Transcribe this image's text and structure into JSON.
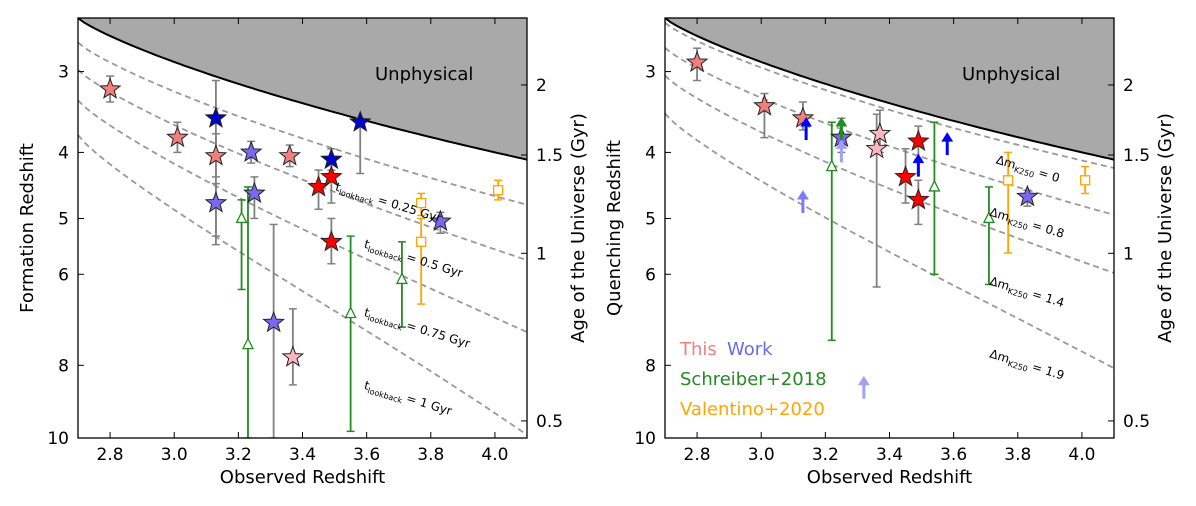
{
  "chart_data": [
    {
      "type": "scatter",
      "title": "",
      "xlabel": "Observed Redshift",
      "ylabel": "Formation Redshift",
      "y2label": "Age of the Universe (Gyr)",
      "xlim": [
        2.7,
        4.1
      ],
      "ylim": [
        10,
        2.45
      ],
      "x_ticks": [
        2.8,
        3.0,
        3.2,
        3.4,
        3.6,
        3.8,
        4.0
      ],
      "x_tick_labels": [
        "2.8",
        "3.0",
        "3.2",
        "3.4",
        "3.6",
        "3.8",
        "4.0"
      ],
      "y_ticks": [
        3,
        4,
        5,
        6,
        8,
        10
      ],
      "y_tick_labels": [
        "3",
        "4",
        "5",
        "6",
        "8",
        "10"
      ],
      "y2_ticks": [
        2,
        1.5,
        1,
        0.5
      ],
      "y2_tick_labels": [
        "2",
        "1.5",
        "1",
        "0.5"
      ],
      "shaded_region_label": "Unphysical",
      "curves": [
        {
          "label_html": "t<tspan font-size='9' dy='3'>lookback</tspan><tspan dy='-3'> = 0.25 Gyr</tspan>",
          "label_text": "t_lookback = 0.25 Gyr",
          "label_x": 3.5,
          "label_zf": 4.55,
          "offset": 0.25
        },
        {
          "label_text": "t_lookback = 0.5 Gyr",
          "label_x": 3.59,
          "label_zf": 5.5,
          "offset": 0.5
        },
        {
          "label_text": "t_lookback = 0.75 Gyr",
          "label_x": 3.59,
          "label_zf": 6.85,
          "offset": 0.75
        },
        {
          "label_text": "t_lookback = 1 Gyr",
          "label_x": 3.59,
          "label_zf": 8.6,
          "offset": 1.0
        }
      ],
      "points": [
        {
          "x": 2.8,
          "y": 3.2,
          "elo": 0.15,
          "ehi": 0.15,
          "color": "#f08080"
        },
        {
          "x": 3.01,
          "y": 3.8,
          "elo": 0.2,
          "ehi": 0.2,
          "color": "#f08080"
        },
        {
          "x": 3.13,
          "y": 4.05,
          "elo": 0.3,
          "ehi": 0.3,
          "color": "#f08080"
        },
        {
          "x": 3.13,
          "y": 3.55,
          "elo": 0.45,
          "ehi": 1.75,
          "color": "#0000cd"
        },
        {
          "x": 3.13,
          "y": 4.75,
          "elo": 0.3,
          "ehi": 0.7,
          "color": "#7b68ee"
        },
        {
          "x": 3.24,
          "y": 4.0,
          "elo": 0.15,
          "ehi": 0.15,
          "color": "#7b68ee"
        },
        {
          "x": 3.25,
          "y": 4.6,
          "elo": 0.25,
          "ehi": 0.4,
          "color": "#7b68ee"
        },
        {
          "x": 3.31,
          "y": 7.0,
          "elo": 1.9,
          "ehi": 3.0,
          "color": "#7b68ee"
        },
        {
          "x": 3.36,
          "y": 4.05,
          "elo": 0.15,
          "ehi": 0.15,
          "color": "#f08080"
        },
        {
          "x": 3.37,
          "y": 7.8,
          "elo": 1.1,
          "ehi": 0.7,
          "color": "#ffb6c1"
        },
        {
          "x": 3.45,
          "y": 4.5,
          "elo": 0.25,
          "ehi": 0.35,
          "color": "#ff0000"
        },
        {
          "x": 3.49,
          "y": 4.35,
          "elo": 0.4,
          "ehi": 0.4,
          "color": "#ff0000"
        },
        {
          "x": 3.49,
          "y": 5.4,
          "elo": 0.4,
          "ehi": 0.4,
          "color": "#ff0000"
        },
        {
          "x": 3.49,
          "y": 4.1,
          "elo": 0.15,
          "ehi": 0.15,
          "color": "#0000cd"
        },
        {
          "x": 3.58,
          "y": 3.6,
          "elo": 0.05,
          "ehi": 0.7,
          "color": "#0000cd"
        },
        {
          "x": 3.83,
          "y": 5.05,
          "elo": 0.15,
          "ehi": 0.2,
          "color": "#7b68ee"
        }
      ],
      "schreiber": [
        {
          "x": 3.21,
          "y": 5.0,
          "elo": 0.3,
          "ehi": 1.3
        },
        {
          "x": 3.23,
          "y": 7.5,
          "elo": 3.0,
          "ehi": 2.5
        },
        {
          "x": 3.55,
          "y": 6.8,
          "elo": 1.5,
          "ehi": 3.0
        },
        {
          "x": 3.71,
          "y": 6.1,
          "elo": 0.7,
          "ehi": 1.0
        }
      ],
      "valentino": [
        {
          "x": 3.77,
          "y": 4.75,
          "elo": 0.15,
          "ehi": 0.2
        },
        {
          "x": 3.77,
          "y": 5.4,
          "elo": 0.4,
          "ehi": 1.2
        },
        {
          "x": 4.01,
          "y": 4.55,
          "elo": 0.15,
          "ehi": 0.15
        }
      ],
      "arrows": []
    },
    {
      "type": "scatter",
      "title": "",
      "xlabel": "Observed Redshift",
      "ylabel": "Quenching Redshift",
      "y2label": "Age of the Universe (Gyr)",
      "xlim": [
        2.7,
        4.1
      ],
      "ylim": [
        10,
        2.45
      ],
      "x_ticks": [
        2.8,
        3.0,
        3.2,
        3.4,
        3.6,
        3.8,
        4.0
      ],
      "x_tick_labels": [
        "2.8",
        "3.0",
        "3.2",
        "3.4",
        "3.6",
        "3.8",
        "4.0"
      ],
      "y_ticks": [
        3,
        4,
        5,
        6,
        8,
        10
      ],
      "y_tick_labels": [
        "3",
        "4",
        "5",
        "6",
        "8",
        "10"
      ],
      "y2_ticks": [
        2,
        1.5,
        1,
        0.5
      ],
      "y2_tick_labels": [
        "2",
        "1.5",
        "1",
        "0.5"
      ],
      "shaded_region_label": "Unphysical",
      "curves": [
        {
          "label_text": "Δm_K250 = 0",
          "label_x": 3.73,
          "label_zf": 4.15,
          "offset": 0.05
        },
        {
          "label_text": "Δm_K250 = 0.8",
          "label_x": 3.71,
          "label_zf": 4.95,
          "offset": 0.3
        },
        {
          "label_text": "Δm_K250 = 1.4",
          "label_x": 3.71,
          "label_zf": 6.2,
          "offset": 0.55
        },
        {
          "label_text": "Δm_K250 = 1.9",
          "label_x": 3.71,
          "label_zf": 7.8,
          "offset": 0.85
        }
      ],
      "points": [
        {
          "x": 2.8,
          "y": 2.9,
          "elo": 0.15,
          "ehi": 0.2,
          "color": "#f08080"
        },
        {
          "x": 3.01,
          "y": 3.4,
          "elo": 0.15,
          "ehi": 0.4,
          "color": "#f08080"
        },
        {
          "x": 3.13,
          "y": 3.55,
          "elo": 0.2,
          "ehi": 0.15,
          "color": "#f08080"
        },
        {
          "x": 3.25,
          "y": 3.8,
          "elo": 0.25,
          "ehi": 0.2,
          "color": "#7b68ee"
        },
        {
          "x": 3.36,
          "y": 3.95,
          "elo": 0.45,
          "ehi": 2.3,
          "color": "#ffb6c1"
        },
        {
          "x": 3.37,
          "y": 3.75,
          "elo": 0.3,
          "ehi": 0.25,
          "color": "#ffb6c1"
        },
        {
          "x": 3.45,
          "y": 4.35,
          "elo": 0.4,
          "ehi": 0.4,
          "color": "#ff0000"
        },
        {
          "x": 3.49,
          "y": 3.85,
          "elo": 0.2,
          "ehi": 0.25,
          "color": "#ff0000"
        },
        {
          "x": 3.49,
          "y": 4.7,
          "elo": 0.3,
          "ehi": 0.4,
          "color": "#ff0000"
        },
        {
          "x": 3.83,
          "y": 4.65,
          "elo": 0.1,
          "ehi": 0.15,
          "color": "#7b68ee"
        }
      ],
      "schreiber": [
        {
          "x": 3.22,
          "y": 4.2,
          "elo": 0.6,
          "ehi": 3.2
        },
        {
          "x": 3.54,
          "y": 4.5,
          "elo": 0.9,
          "ehi": 1.5
        },
        {
          "x": 3.71,
          "y": 5.0,
          "elo": 0.5,
          "ehi": 1.2
        }
      ],
      "valentino": [
        {
          "x": 3.77,
          "y": 4.4,
          "elo": 0.4,
          "ehi": 1.2
        },
        {
          "x": 4.01,
          "y": 4.4,
          "elo": 0.2,
          "ehi": 0.2
        }
      ],
      "arrows": [
        {
          "x": 3.14,
          "y": 3.7,
          "color": "#0000ff"
        },
        {
          "x": 3.49,
          "y": 4.2,
          "color": "#0000ff"
        },
        {
          "x": 3.58,
          "y": 3.9,
          "color": "#0000ff"
        },
        {
          "x": 3.13,
          "y": 4.75,
          "color": "#7b7bff"
        },
        {
          "x": 3.25,
          "y": 4.0,
          "color": "#9fa0ff"
        },
        {
          "x": 3.32,
          "y": 8.6,
          "color": "#a0a0ff"
        },
        {
          "x": 3.25,
          "y": 3.7,
          "color": "#228b22"
        }
      ],
      "legend": [
        {
          "text": "This",
          "color": "#f08080"
        },
        {
          "text": "Work",
          "color": "#6a6aee"
        },
        {
          "text": "Schreiber+2018",
          "color": "#228b22"
        },
        {
          "text": "Valentino+2020",
          "color": "#ffa500"
        }
      ]
    }
  ]
}
